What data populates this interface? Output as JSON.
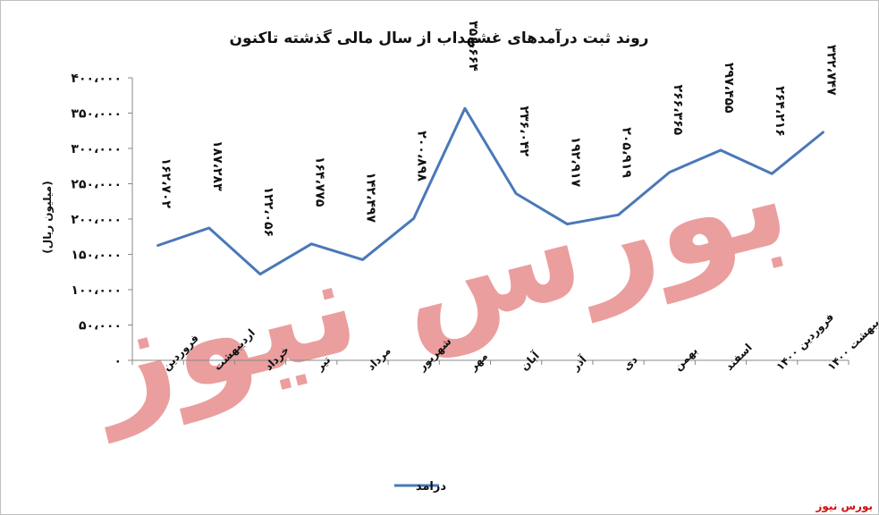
{
  "chart_data": {
    "type": "line",
    "title": "روند ثبت درآمدهای غشهداب از سال مالی گذشته تاکنون",
    "ylabel": "(میلیون ریال)",
    "xlabel": "",
    "ylim": [
      0,
      400000
    ],
    "yticks": [
      0,
      50000,
      100000,
      150000,
      200000,
      250000,
      300000,
      350000,
      400000
    ],
    "ytick_labels": [
      "۰",
      "۵۰،۰۰۰",
      "۱۰۰،۰۰۰",
      "۱۵۰،۰۰۰",
      "۲۰۰،۰۰۰",
      "۲۵۰،۰۰۰",
      "۳۰۰،۰۰۰",
      "۳۵۰،۰۰۰",
      "۴۰۰،۰۰۰"
    ],
    "categories": [
      "فروردین",
      "اردیبهشت",
      "خرداد",
      "تیر",
      "مرداد",
      "شهریور",
      "مهر",
      "آبان",
      "آذر",
      "دی",
      "بهمن",
      "اسفند",
      "فروردین ۱۴۰۰",
      "اردیبهشت ۱۴۰۰"
    ],
    "series": [
      {
        "name": "درامد",
        "color": "#4a78b8",
        "values": [
          162702,
          187283,
          122056,
          164775,
          142497,
          200898,
          356664,
          236042,
          192917,
          205919,
          266365,
          297455,
          264216,
          322747
        ],
        "labels": [
          "۱۶۲،۷۰۲",
          "۱۸۷،۲۸۳",
          "۱۲۲،۰۵۶",
          "۱۶۴،۷۷۵",
          "۱۴۲،۴۹۷",
          "۲۰۰،۸۹۸",
          "۳۵۶،۶۶۴",
          "۲۳۶،۰۴۲",
          "۱۹۲،۹۱۷",
          "۲۰۵،۹۱۹",
          "۲۶۶،۳۶۵",
          "۲۹۷،۴۵۵",
          "۲۶۴،۲۱۶",
          "۳۲۲،۷۴۷"
        ]
      }
    ],
    "legend_position": "bottom",
    "grid": false
  },
  "watermark": "بورس نیوز",
  "logo": "بورس نیوز"
}
